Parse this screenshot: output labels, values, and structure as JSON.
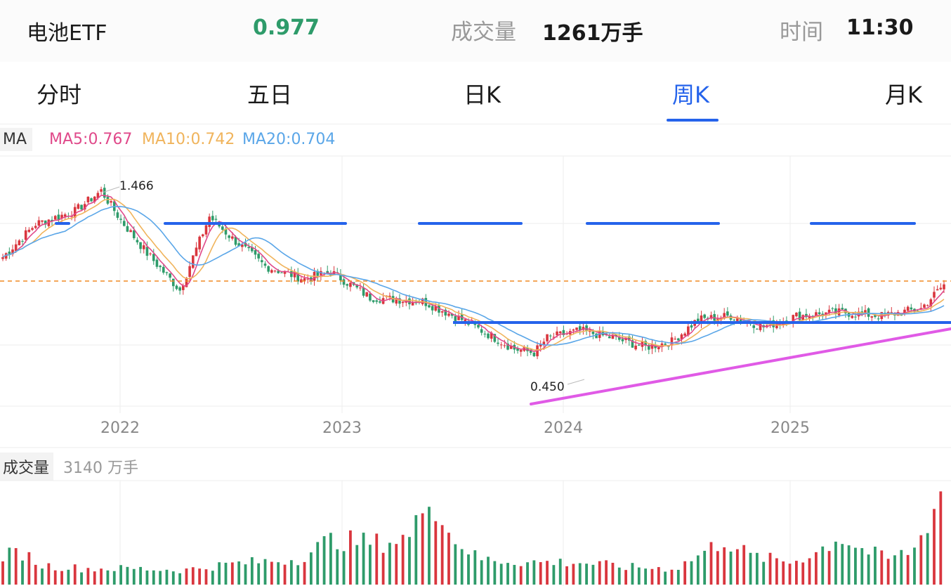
{
  "header": {
    "name": "电池ETF",
    "price": "0.977",
    "volume_label": "成交量",
    "volume": "1261万手",
    "time_label": "时间",
    "time": "11:30",
    "price_color": "#2e9b6a"
  },
  "tabs": [
    {
      "label": "分时",
      "active": false
    },
    {
      "label": "五日",
      "active": false
    },
    {
      "label": "日K",
      "active": false
    },
    {
      "label": "周K",
      "active": true
    },
    {
      "label": "月K",
      "active": false
    }
  ],
  "legend": {
    "ma_tag": "MA",
    "ma5": "MA5:0.767",
    "ma10": "MA10:0.742",
    "ma20": "MA20:0.704"
  },
  "volume_legend": {
    "label": "成交量",
    "value": "3140 万手"
  },
  "colors": {
    "up": "#d9363e",
    "down": "#2e9b6a",
    "ma5": "#e0498a",
    "ma10": "#f0b45c",
    "ma20": "#5aa6e8",
    "drawn_line": "#2563eb",
    "trend_line": "#e05ae6",
    "ref_line": "#f08a24"
  },
  "chart_data": {
    "type": "candlestick",
    "x_ticks": [
      "2022",
      "2023",
      "2024",
      "2025"
    ],
    "annotations": {
      "high": "1.466",
      "low": "0.450"
    },
    "price_anchor": [
      [
        0,
        1.1
      ],
      [
        10,
        1.28
      ],
      [
        22,
        1.35
      ],
      [
        30,
        1.46
      ],
      [
        36,
        1.3
      ],
      [
        44,
        1.12
      ],
      [
        54,
        0.92
      ],
      [
        58,
        1.1
      ],
      [
        63,
        1.32
      ],
      [
        70,
        1.2
      ],
      [
        80,
        1.05
      ],
      [
        92,
        0.98
      ],
      [
        100,
        1.02
      ],
      [
        112,
        0.88
      ],
      [
        128,
        0.86
      ],
      [
        140,
        0.76
      ],
      [
        156,
        0.6
      ],
      [
        162,
        0.58
      ],
      [
        166,
        0.66
      ],
      [
        176,
        0.7
      ],
      [
        186,
        0.66
      ],
      [
        196,
        0.61
      ],
      [
        204,
        0.64
      ],
      [
        212,
        0.76
      ],
      [
        222,
        0.78
      ],
      [
        232,
        0.72
      ],
      [
        242,
        0.78
      ],
      [
        256,
        0.8
      ],
      [
        268,
        0.78
      ],
      [
        280,
        0.82
      ],
      [
        287,
        0.95
      ]
    ],
    "volume_anchor": [
      [
        0,
        900
      ],
      [
        6,
        1000
      ],
      [
        12,
        600
      ],
      [
        25,
        500
      ],
      [
        40,
        500
      ],
      [
        55,
        450
      ],
      [
        70,
        650
      ],
      [
        90,
        800
      ],
      [
        100,
        1400
      ],
      [
        115,
        1300
      ],
      [
        125,
        1500
      ],
      [
        130,
        3100
      ],
      [
        135,
        1700
      ],
      [
        145,
        800
      ],
      [
        160,
        700
      ],
      [
        175,
        700
      ],
      [
        190,
        550
      ],
      [
        205,
        500
      ],
      [
        212,
        900
      ],
      [
        220,
        1400
      ],
      [
        228,
        900
      ],
      [
        240,
        700
      ],
      [
        248,
        1000
      ],
      [
        255,
        1500
      ],
      [
        262,
        1100
      ],
      [
        270,
        800
      ],
      [
        278,
        1100
      ],
      [
        287,
        3100
      ]
    ]
  }
}
